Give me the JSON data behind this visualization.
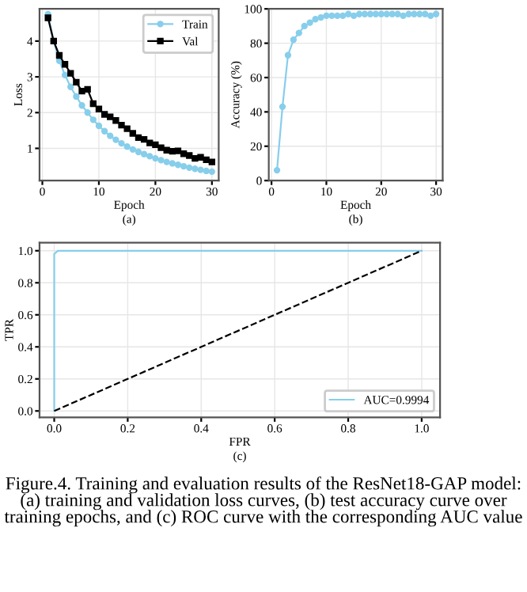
{
  "chart_data": [
    {
      "type": "line",
      "xlabel": "Epoch",
      "ylabel": "Loss",
      "annotations": [
        "(a)"
      ],
      "x": [
        1,
        2,
        3,
        4,
        5,
        6,
        7,
        8,
        9,
        10,
        11,
        12,
        13,
        14,
        15,
        16,
        17,
        18,
        19,
        20,
        21,
        22,
        23,
        24,
        25,
        26,
        27,
        28,
        29,
        30
      ],
      "series": [
        {
          "name": "Train",
          "color": "#87ceeb",
          "marker": "circle",
          "values": [
            4.75,
            4.0,
            3.45,
            3.05,
            2.72,
            2.45,
            2.2,
            2.0,
            1.8,
            1.63,
            1.48,
            1.35,
            1.24,
            1.14,
            1.05,
            0.97,
            0.9,
            0.84,
            0.78,
            0.72,
            0.67,
            0.62,
            0.58,
            0.54,
            0.5,
            0.46,
            0.43,
            0.4,
            0.37,
            0.35
          ]
        },
        {
          "name": "Val",
          "color": "#000000",
          "marker": "square",
          "values": [
            4.65,
            4.0,
            3.6,
            3.35,
            3.1,
            2.85,
            2.6,
            2.65,
            2.25,
            2.1,
            1.95,
            1.88,
            1.78,
            1.65,
            1.55,
            1.42,
            1.3,
            1.25,
            1.15,
            1.1,
            1.02,
            0.95,
            0.92,
            0.93,
            0.85,
            0.8,
            0.72,
            0.75,
            0.68,
            0.62
          ]
        }
      ],
      "xlim": [
        -0.5,
        31.2
      ],
      "ylim": [
        0.1,
        4.9
      ],
      "xticks": [
        0,
        10,
        20,
        30
      ],
      "yticks": [
        1,
        2,
        3,
        4
      ],
      "grid": true,
      "legend": "top right"
    },
    {
      "type": "line",
      "xlabel": "Epoch",
      "ylabel": "Accuracy (%)",
      "annotations": [
        "(b)"
      ],
      "x": [
        1,
        2,
        3,
        4,
        5,
        6,
        7,
        8,
        9,
        10,
        11,
        12,
        13,
        14,
        15,
        16,
        17,
        18,
        19,
        20,
        21,
        22,
        23,
        24,
        25,
        26,
        27,
        28,
        29,
        30
      ],
      "series": [
        {
          "color": "#87ceeb",
          "marker": "circle",
          "values": [
            6,
            43,
            73,
            82,
            86,
            90,
            92,
            94,
            95,
            96,
            96,
            96,
            96,
            97,
            96,
            97,
            97,
            97,
            97,
            97,
            97,
            97,
            97,
            96,
            97,
            97,
            97,
            97,
            96,
            97
          ]
        }
      ],
      "xlim": [
        -0.5,
        31.2
      ],
      "ylim": [
        0,
        100
      ],
      "xticks": [
        0,
        10,
        20,
        30
      ],
      "yticks": [
        0,
        20,
        40,
        60,
        80,
        100
      ],
      "grid": true
    },
    {
      "type": "line",
      "xlabel": "FPR",
      "ylabel": "TPR",
      "annotations": [
        "(c)",
        "Figure.4. Training and evaluation results of the ResNet18-GAP model: (a) training and validation loss curves, (b) test accuracy curve over training epochs, and (c) ROC curve with the corresponding AUC value"
      ],
      "series": [
        {
          "name": "AUC=0.9994",
          "color": "#87ceeb",
          "x": [
            0,
            0,
            0.005,
            0.01,
            0.12,
            1
          ],
          "values": [
            0,
            0.98,
            0.99,
            1.0,
            1.0,
            1.0
          ]
        },
        {
          "color": "#000000",
          "line_style": "dashed",
          "x": [
            0,
            1
          ],
          "values": [
            0,
            1
          ]
        }
      ],
      "xlim": [
        -0.04,
        1.05
      ],
      "ylim": [
        -0.04,
        1.05
      ],
      "xticks": [
        {
          "value": 0,
          "label": "0.0"
        },
        0.2,
        0.4,
        0.6,
        0.8,
        {
          "value": 1,
          "label": "1.0"
        }
      ],
      "yticks": [
        {
          "value": 0,
          "label": "0.0"
        },
        0.2,
        0.4,
        0.6,
        0.8,
        {
          "value": 1,
          "label": "1.0"
        }
      ],
      "grid": true,
      "legend": "bottom right"
    }
  ]
}
